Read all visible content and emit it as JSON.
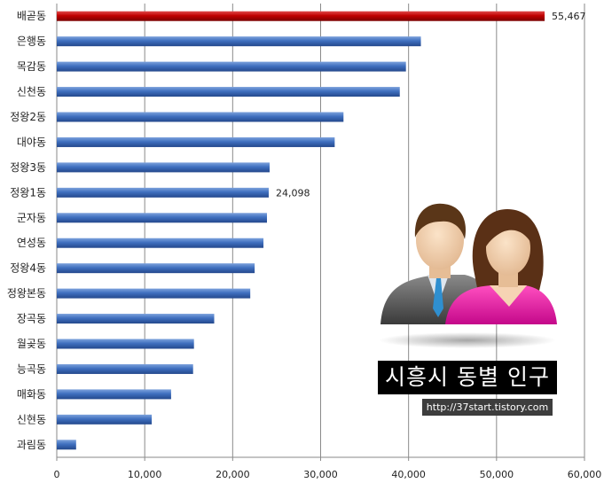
{
  "chart_data": {
    "type": "bar",
    "orientation": "horizontal",
    "categories": [
      "배곧동",
      "은행동",
      "목감동",
      "신천동",
      "정왕2동",
      "대야동",
      "정왕3동",
      "정왕1동",
      "군자동",
      "연성동",
      "정왕4동",
      "정왕본동",
      "장곡동",
      "월곶동",
      "능곡동",
      "매화동",
      "신현동",
      "과림동"
    ],
    "values": [
      55467,
      41400,
      39700,
      39000,
      32600,
      31600,
      24200,
      24098,
      23900,
      23500,
      22500,
      22000,
      17900,
      15600,
      15500,
      13000,
      10800,
      2200
    ],
    "data_labels": [
      {
        "index": 0,
        "text": "55,467"
      },
      {
        "index": 7,
        "text": "24,098"
      }
    ],
    "xlim": [
      0,
      60000
    ],
    "xticks": [
      0,
      10000,
      20000,
      30000,
      40000,
      50000,
      60000
    ],
    "xtick_labels": [
      "0",
      "10,000",
      "20,000",
      "30,000",
      "40,000",
      "50,000",
      "60,000"
    ],
    "grid": "vertical",
    "colors": {
      "bar": "#3a66b0",
      "highlight": "#c00000"
    },
    "highlight_index": 0
  },
  "overlay": {
    "title": "시흥시 동별 인구",
    "url": "http://37start.tistory.com"
  },
  "icons": [
    "people-icon"
  ]
}
